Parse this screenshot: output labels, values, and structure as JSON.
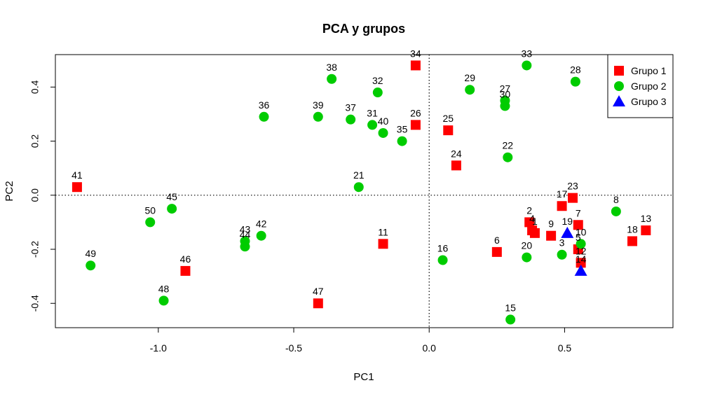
{
  "chart_data": {
    "type": "scatter",
    "title": "PCA y grupos",
    "xlabel": "PC1",
    "ylabel": "PC2",
    "xlim": [
      -1.38,
      0.9
    ],
    "ylim": [
      -0.49,
      0.52
    ],
    "xticks": [
      -1.0,
      -0.5,
      0.0,
      0.5
    ],
    "xtick_labels": [
      "-1.0",
      "-0.5",
      "0.0",
      "0.5"
    ],
    "yticks": [
      -0.4,
      -0.2,
      0.0,
      0.2,
      0.4
    ],
    "ytick_labels": [
      "-0.4",
      "-0.2",
      "0.0",
      "0.2",
      "0.4"
    ],
    "reference_lines": {
      "x": 0,
      "y": 0,
      "style": "dotted"
    },
    "legend": {
      "position": "top-right"
    },
    "groups": [
      {
        "name": "Grupo 1",
        "shape": "square",
        "color": "#ff0000"
      },
      {
        "name": "Grupo 2",
        "shape": "circle",
        "color": "#00cc00"
      },
      {
        "name": "Grupo 3",
        "shape": "triangle",
        "color": "#0000ff"
      }
    ],
    "points": [
      {
        "label": "1",
        "x": 0.39,
        "y": -0.14,
        "group": 0
      },
      {
        "label": "2",
        "x": 0.37,
        "y": -0.1,
        "group": 0
      },
      {
        "label": "3",
        "x": 0.49,
        "y": -0.22,
        "group": 1
      },
      {
        "label": "4",
        "x": 0.38,
        "y": -0.13,
        "group": 0
      },
      {
        "label": "5",
        "x": 0.55,
        "y": -0.2,
        "group": 0
      },
      {
        "label": "6",
        "x": 0.25,
        "y": -0.21,
        "group": 0
      },
      {
        "label": "7",
        "x": 0.55,
        "y": -0.11,
        "group": 0
      },
      {
        "label": "8",
        "x": 0.69,
        "y": -0.06,
        "group": 1
      },
      {
        "label": "9",
        "x": 0.45,
        "y": -0.15,
        "group": 0
      },
      {
        "label": "10",
        "x": 0.56,
        "y": -0.18,
        "group": 1
      },
      {
        "label": "11",
        "x": -0.17,
        "y": -0.18,
        "group": 0
      },
      {
        "label": "12",
        "x": 0.56,
        "y": -0.25,
        "group": 0
      },
      {
        "label": "13",
        "x": 0.8,
        "y": -0.13,
        "group": 0
      },
      {
        "label": "14",
        "x": 0.56,
        "y": -0.28,
        "group": 2
      },
      {
        "label": "15",
        "x": 0.3,
        "y": -0.46,
        "group": 1
      },
      {
        "label": "16",
        "x": 0.05,
        "y": -0.24,
        "group": 1
      },
      {
        "label": "17",
        "x": 0.49,
        "y": -0.04,
        "group": 0
      },
      {
        "label": "18",
        "x": 0.75,
        "y": -0.17,
        "group": 0
      },
      {
        "label": "19",
        "x": 0.51,
        "y": -0.14,
        "group": 2
      },
      {
        "label": "20",
        "x": 0.36,
        "y": -0.23,
        "group": 1
      },
      {
        "label": "21",
        "x": -0.26,
        "y": 0.03,
        "group": 1
      },
      {
        "label": "22",
        "x": 0.29,
        "y": 0.14,
        "group": 1
      },
      {
        "label": "23",
        "x": 0.53,
        "y": -0.01,
        "group": 0
      },
      {
        "label": "24",
        "x": 0.1,
        "y": 0.11,
        "group": 0
      },
      {
        "label": "25",
        "x": 0.07,
        "y": 0.24,
        "group": 0
      },
      {
        "label": "26",
        "x": -0.05,
        "y": 0.26,
        "group": 0
      },
      {
        "label": "27",
        "x": 0.28,
        "y": 0.35,
        "group": 1
      },
      {
        "label": "28",
        "x": 0.54,
        "y": 0.42,
        "group": 1
      },
      {
        "label": "29",
        "x": 0.15,
        "y": 0.39,
        "group": 1
      },
      {
        "label": "30",
        "x": 0.28,
        "y": 0.33,
        "group": 1
      },
      {
        "label": "31",
        "x": -0.21,
        "y": 0.26,
        "group": 1
      },
      {
        "label": "32",
        "x": -0.19,
        "y": 0.38,
        "group": 1
      },
      {
        "label": "33",
        "x": 0.36,
        "y": 0.48,
        "group": 1
      },
      {
        "label": "34",
        "x": -0.05,
        "y": 0.48,
        "group": 0
      },
      {
        "label": "35",
        "x": -0.1,
        "y": 0.2,
        "group": 1
      },
      {
        "label": "36",
        "x": -0.61,
        "y": 0.29,
        "group": 1
      },
      {
        "label": "37",
        "x": -0.29,
        "y": 0.28,
        "group": 1
      },
      {
        "label": "38",
        "x": -0.36,
        "y": 0.43,
        "group": 1
      },
      {
        "label": "39",
        "x": -0.41,
        "y": 0.29,
        "group": 1
      },
      {
        "label": "40",
        "x": -0.17,
        "y": 0.23,
        "group": 1
      },
      {
        "label": "41",
        "x": -1.3,
        "y": 0.03,
        "group": 0
      },
      {
        "label": "42",
        "x": -0.62,
        "y": -0.15,
        "group": 1
      },
      {
        "label": "43",
        "x": -0.68,
        "y": -0.17,
        "group": 1
      },
      {
        "label": "44",
        "x": -0.68,
        "y": -0.19,
        "group": 1
      },
      {
        "label": "45",
        "x": -0.95,
        "y": -0.05,
        "group": 1
      },
      {
        "label": "46",
        "x": -0.9,
        "y": -0.28,
        "group": 0
      },
      {
        "label": "47",
        "x": -0.41,
        "y": -0.4,
        "group": 0
      },
      {
        "label": "48",
        "x": -0.98,
        "y": -0.39,
        "group": 1
      },
      {
        "label": "49",
        "x": -1.25,
        "y": -0.26,
        "group": 1
      },
      {
        "label": "50",
        "x": -1.03,
        "y": -0.1,
        "group": 1
      }
    ]
  }
}
